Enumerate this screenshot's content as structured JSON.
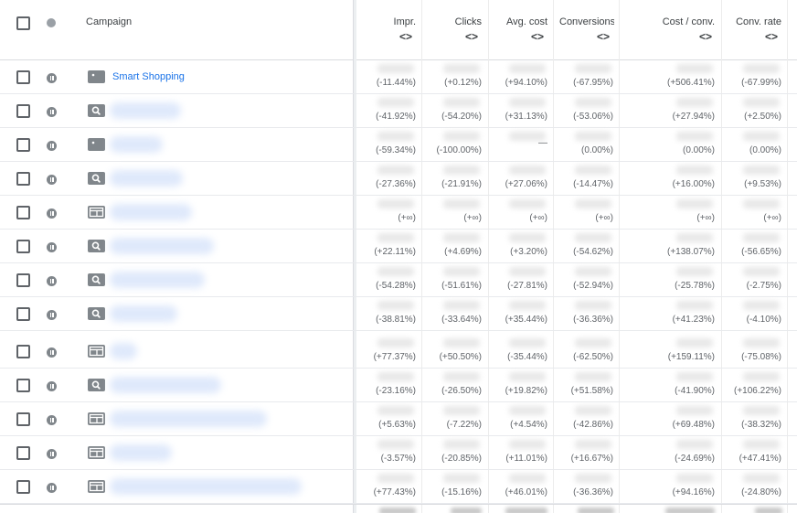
{
  "header": {
    "campaign_label": "Campaign",
    "columns": [
      {
        "label": "Impr.",
        "sort_icon": "<>"
      },
      {
        "label": "Clicks",
        "sort_icon": "<>"
      },
      {
        "label": "Avg. cost",
        "sort_icon": "<>"
      },
      {
        "label": "Conversions",
        "sort_icon": "<>"
      },
      {
        "label": "Cost / conv.",
        "sort_icon": "<>"
      },
      {
        "label": "Conv. rate",
        "sort_icon": "<>"
      }
    ]
  },
  "rows": [
    {
      "name": "Smart Shopping",
      "type_icon": "shopping-tag-icon",
      "status": "paused",
      "values": [
        "(-11.44%)",
        "(+0.12%)",
        "(+94.10%)",
        "(-67.95%)",
        "(+506.41%)",
        "(-67.99%)"
      ]
    },
    {
      "name": "",
      "type_icon": "search-icon",
      "status": "paused",
      "values": [
        "(-41.92%)",
        "(-54.20%)",
        "(+31.13%)",
        "(-53.06%)",
        "(+27.94%)",
        "(+2.50%)"
      ]
    },
    {
      "name": "",
      "type_icon": "shopping-tag-icon",
      "status": "paused",
      "values": [
        "(-59.34%)",
        "(-100.00%)",
        "—",
        "(0.00%)",
        "(0.00%)",
        "(0.00%)"
      ]
    },
    {
      "name": "",
      "type_icon": "search-icon",
      "status": "paused",
      "values": [
        "(-27.36%)",
        "(-21.91%)",
        "(+27.06%)",
        "(-14.47%)",
        "(+16.00%)",
        "(+9.53%)"
      ]
    },
    {
      "name": "",
      "type_icon": "display-icon",
      "status": "paused",
      "values": [
        "(+∞)",
        "(+∞)",
        "(+∞)",
        "(+∞)",
        "(+∞)",
        "(+∞)"
      ]
    },
    {
      "name": "",
      "type_icon": "search-icon",
      "status": "paused",
      "values": [
        "(+22.11%)",
        "(+4.69%)",
        "(+3.20%)",
        "(-54.62%)",
        "(+138.07%)",
        "(-56.65%)"
      ]
    },
    {
      "name": "",
      "type_icon": "search-icon",
      "status": "paused",
      "values": [
        "(-54.28%)",
        "(-51.61%)",
        "(-27.81%)",
        "(-52.94%)",
        "(-25.78%)",
        "(-2.75%)"
      ]
    },
    {
      "name": "",
      "type_icon": "search-icon",
      "status": "paused",
      "values": [
        "(-38.81%)",
        "(-33.64%)",
        "(+35.44%)",
        "(-36.36%)",
        "(+41.23%)",
        "(-4.10%)"
      ]
    },
    {
      "name": "",
      "type_icon": "display-icon",
      "status": "paused",
      "values": [
        "(+77.37%)",
        "(+50.50%)",
        "(-35.44%)",
        "(-62.50%)",
        "(+159.11%)",
        "(-75.08%)"
      ]
    },
    {
      "name": "",
      "type_icon": "search-icon",
      "status": "paused",
      "values": [
        "(-23.16%)",
        "(-26.50%)",
        "(+19.82%)",
        "(+51.58%)",
        "(-41.90%)",
        "(+106.22%)"
      ]
    },
    {
      "name": "",
      "type_icon": "display-icon",
      "status": "paused",
      "values": [
        "(+5.63%)",
        "(-7.22%)",
        "(+4.54%)",
        "(-42.86%)",
        "(+69.48%)",
        "(-38.32%)"
      ]
    },
    {
      "name": "",
      "type_icon": "display-icon",
      "status": "paused",
      "values": [
        "(-3.57%)",
        "(-20.85%)",
        "(+11.01%)",
        "(+16.67%)",
        "(-24.69%)",
        "(+47.41%)"
      ]
    },
    {
      "name": "",
      "type_icon": "display-icon",
      "status": "paused",
      "values": [
        "(+77.43%)",
        "(-15.16%)",
        "(+46.01%)",
        "(-36.36%)",
        "(+94.16%)",
        "(-24.80%)"
      ]
    }
  ],
  "colors": {
    "link": "#1a73e8",
    "icon_gray": "#80868b",
    "text": "#5f6368"
  }
}
